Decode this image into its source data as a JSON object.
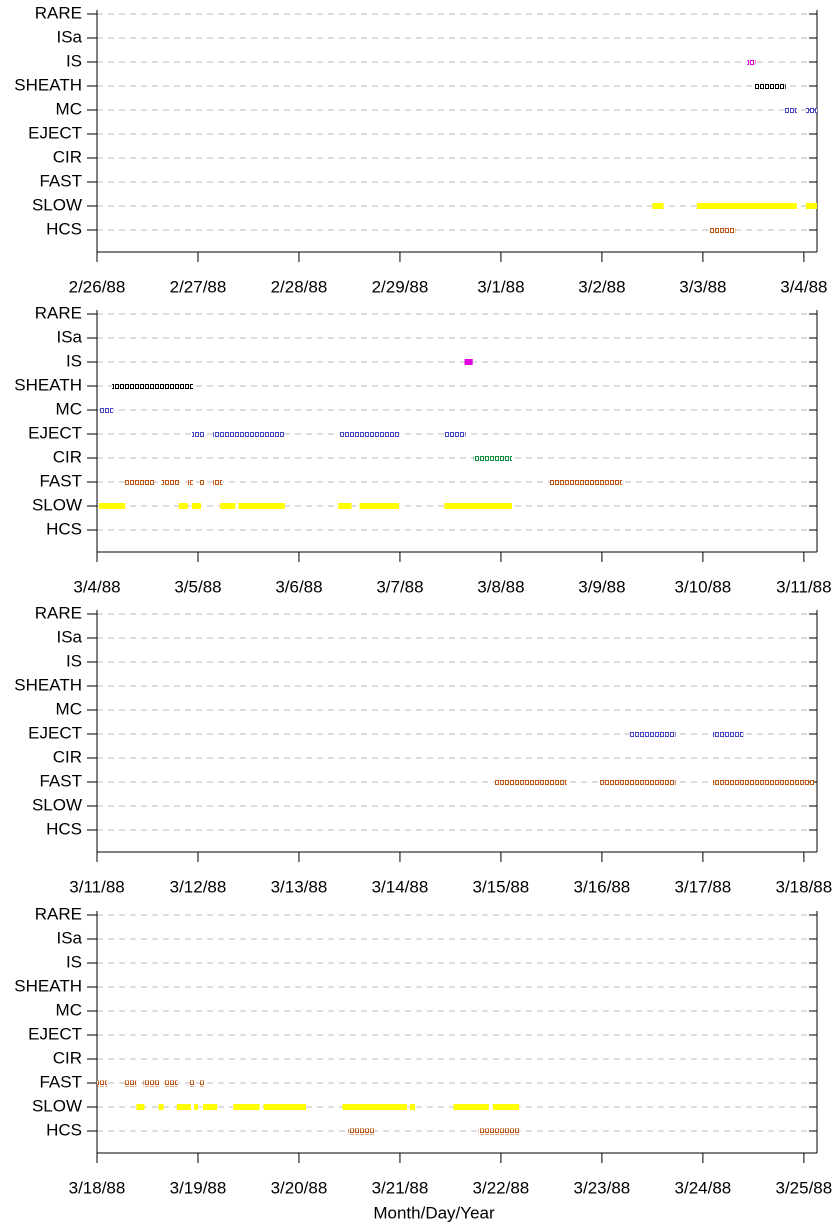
{
  "chart_data": [
    {
      "type": "timeline",
      "categories": [
        "RARE",
        "ISa",
        "IS",
        "SHEATH",
        "MC",
        "EJECT",
        "CIR",
        "FAST",
        "SLOW",
        "HCS"
      ],
      "colors": [
        "#000000",
        "#000000",
        "#e000e0",
        "#000000",
        "#4848c8",
        "#4848c8",
        "#109040",
        "#c05818",
        "#ffff00",
        "#c05818"
      ],
      "filled": [
        false,
        false,
        false,
        false,
        false,
        false,
        false,
        false,
        true,
        false
      ],
      "intervals": [
        [],
        [],
        [
          [
            6.44,
            6.52
          ]
        ],
        [
          [
            6.51,
            6.82
          ]
        ],
        [
          [
            6.81,
            6.93
          ],
          [
            7.02,
            7.13
          ]
        ],
        [],
        [],
        [],
        [
          [
            5.5,
            5.61
          ],
          [
            5.94,
            6.93
          ],
          [
            7.02,
            7.13
          ]
        ],
        [
          [
            6.06,
            6.32
          ]
        ]
      ],
      "xlim": [
        0,
        7.13
      ],
      "xticks": [
        {
          "value": 0,
          "label": "2/26/88"
        },
        {
          "value": 1,
          "label": "2/27/88"
        },
        {
          "value": 2,
          "label": "2/28/88"
        },
        {
          "value": 3,
          "label": "2/29/88"
        },
        {
          "value": 4,
          "label": "3/1/88"
        },
        {
          "value": 5,
          "label": "3/2/88"
        },
        {
          "value": 6,
          "label": "3/3/88"
        },
        {
          "value": 7,
          "label": "3/4/88"
        }
      ],
      "grid": true
    },
    {
      "type": "timeline",
      "categories": [
        "RARE",
        "ISa",
        "IS",
        "SHEATH",
        "MC",
        "EJECT",
        "CIR",
        "FAST",
        "SLOW",
        "HCS"
      ],
      "colors": [
        "#000000",
        "#000000",
        "#e000e0",
        "#000000",
        "#4848c8",
        "#4848c8",
        "#109040",
        "#c05818",
        "#ffff00",
        "#c05818"
      ],
      "filled": [
        false,
        false,
        true,
        false,
        false,
        false,
        false,
        false,
        true,
        false
      ],
      "intervals": [
        [],
        [],
        [
          [
            10.64,
            10.72
          ]
        ],
        [
          [
            7.15,
            7.95
          ]
        ],
        [
          [
            7.02,
            7.16
          ]
        ],
        [
          [
            7.94,
            8.07
          ],
          [
            8.15,
            8.86
          ],
          [
            9.4,
            9.99
          ],
          [
            10.44,
            10.65
          ]
        ],
        [
          [
            10.73,
            11.11
          ]
        ],
        [
          [
            7.27,
            7.57
          ],
          [
            7.64,
            7.82
          ],
          [
            7.9,
            7.95
          ],
          [
            8.02,
            8.07
          ],
          [
            8.15,
            8.24
          ],
          [
            11.48,
            12.2
          ]
        ],
        [
          [
            7.02,
            7.28
          ],
          [
            7.81,
            7.9
          ],
          [
            7.94,
            8.03
          ],
          [
            8.22,
            8.37
          ],
          [
            8.4,
            8.86
          ],
          [
            9.39,
            9.52
          ],
          [
            9.6,
            9.99
          ],
          [
            10.44,
            11.11
          ]
        ],
        []
      ],
      "xlim": [
        7,
        14.13
      ],
      "xticks": [
        {
          "value": 7,
          "label": "3/4/88"
        },
        {
          "value": 8,
          "label": "3/5/88"
        },
        {
          "value": 9,
          "label": "3/6/88"
        },
        {
          "value": 10,
          "label": "3/7/88"
        },
        {
          "value": 11,
          "label": "3/8/88"
        },
        {
          "value": 12,
          "label": "3/9/88"
        },
        {
          "value": 13,
          "label": "3/10/88"
        },
        {
          "value": 14,
          "label": "3/11/88"
        }
      ],
      "grid": true
    },
    {
      "type": "timeline",
      "categories": [
        "RARE",
        "ISa",
        "IS",
        "SHEATH",
        "MC",
        "EJECT",
        "CIR",
        "FAST",
        "SLOW",
        "HCS"
      ],
      "colors": [
        "#000000",
        "#000000",
        "#e000e0",
        "#000000",
        "#4848c8",
        "#4848c8",
        "#109040",
        "#c05818",
        "#ffff00",
        "#c05818"
      ],
      "filled": [
        false,
        false,
        false,
        false,
        false,
        false,
        false,
        false,
        true,
        false
      ],
      "intervals": [
        [],
        [],
        [],
        [],
        [],
        [
          [
            19.27,
            19.73
          ],
          [
            20.1,
            20.4
          ]
        ],
        [],
        [
          [
            17.94,
            18.65
          ],
          [
            18.98,
            19.73
          ],
          [
            20.1,
            21.11
          ]
        ],
        [],
        []
      ],
      "xlim": [
        14,
        21.13
      ],
      "xticks": [
        {
          "value": 14,
          "label": "3/11/88"
        },
        {
          "value": 15,
          "label": "3/12/88"
        },
        {
          "value": 16,
          "label": "3/13/88"
        },
        {
          "value": 17,
          "label": "3/14/88"
        },
        {
          "value": 18,
          "label": "3/15/88"
        },
        {
          "value": 19,
          "label": "3/16/88"
        },
        {
          "value": 20,
          "label": "3/17/88"
        },
        {
          "value": 21,
          "label": "3/18/88"
        }
      ],
      "grid": true
    },
    {
      "type": "timeline",
      "categories": [
        "RARE",
        "ISa",
        "IS",
        "SHEATH",
        "MC",
        "EJECT",
        "CIR",
        "FAST",
        "SLOW",
        "HCS"
      ],
      "colors": [
        "#000000",
        "#000000",
        "#e000e0",
        "#000000",
        "#4848c8",
        "#4848c8",
        "#109040",
        "#c05818",
        "#ffff00",
        "#c05818"
      ],
      "filled": [
        false,
        false,
        false,
        false,
        false,
        false,
        false,
        false,
        true,
        false
      ],
      "intervals": [
        [],
        [],
        [],
        [],
        [],
        [],
        [],
        [
          [
            21.0,
            21.1
          ],
          [
            21.27,
            21.39
          ],
          [
            21.46,
            21.62
          ],
          [
            21.67,
            21.8
          ],
          [
            21.92,
            21.97
          ],
          [
            22.01,
            22.06
          ]
        ],
        [
          [
            21.39,
            21.47
          ],
          [
            21.61,
            21.66
          ],
          [
            21.79,
            21.93
          ],
          [
            21.96,
            22.0
          ],
          [
            22.05,
            22.19
          ],
          [
            22.35,
            22.61
          ],
          [
            22.65,
            23.07
          ],
          [
            23.43,
            24.07
          ],
          [
            24.1,
            24.15
          ],
          [
            24.53,
            24.88
          ],
          [
            24.92,
            25.18
          ]
        ],
        [
          [
            23.49,
            23.75
          ],
          [
            24.78,
            25.18
          ]
        ]
      ],
      "xlim": [
        21,
        28.13
      ],
      "xticks": [
        {
          "value": 21,
          "label": "3/18/88"
        },
        {
          "value": 22,
          "label": "3/19/88"
        },
        {
          "value": 23,
          "label": "3/20/88"
        },
        {
          "value": 24,
          "label": "3/21/88"
        },
        {
          "value": 25,
          "label": "3/22/88"
        },
        {
          "value": 26,
          "label": "3/23/88"
        },
        {
          "value": 27,
          "label": "3/24/88"
        },
        {
          "value": 28,
          "label": "3/25/88"
        }
      ],
      "xlabel": "Month/Day/Year",
      "grid": true
    }
  ]
}
